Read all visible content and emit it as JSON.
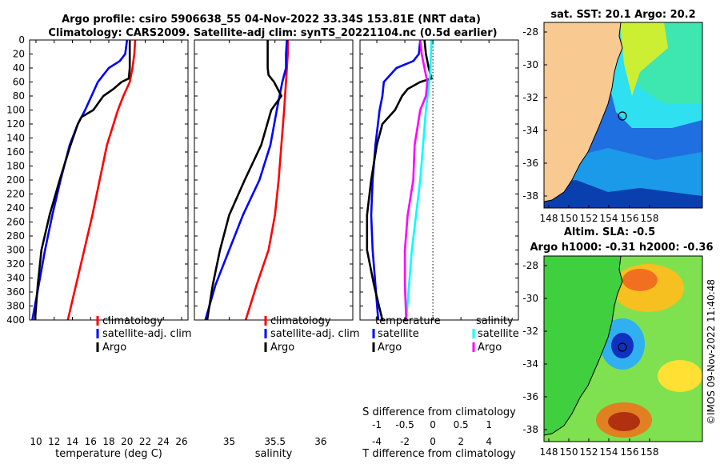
{
  "title": {
    "line1": "Argo profile: csiro 5906638_55 04-Nov-2022 33.34S 153.81E (NRT data)",
    "line2": "Climatology: CARS2009. Satellite-adj clim: synTS_20221104.nc (0.5d earlier)"
  },
  "colors": {
    "red": "#ff0000",
    "blue": "#0000ff",
    "black": "#000000",
    "cyan": "#00ffff",
    "magenta": "#ff00ff",
    "land": "#f9c992"
  },
  "chart_data": [
    {
      "id": "temperature",
      "type": "line",
      "xlabel": "temperature (deg C)",
      "ylim": [
        0,
        400
      ],
      "xlim": [
        9.3,
        26.7
      ],
      "xticks": [
        "10",
        "12",
        "14",
        "16",
        "18",
        "20",
        "22",
        "24",
        "26"
      ],
      "xtick_values": [
        10,
        12,
        14,
        16,
        18,
        20,
        22,
        24,
        26
      ],
      "yticks": [
        "0",
        "20",
        "40",
        "60",
        "80",
        "100",
        "120",
        "140",
        "160",
        "180",
        "200",
        "220",
        "240",
        "260",
        "280",
        "300",
        "320",
        "340",
        "360",
        "380",
        "400"
      ],
      "legend": [
        "climatology",
        "satellite-adj. clim",
        "Argo"
      ],
      "series": [
        {
          "name": "climatology",
          "color": "red",
          "depth": [
            0,
            20,
            40,
            60,
            80,
            100,
            150,
            200,
            250,
            300,
            350,
            400
          ],
          "values": [
            20.9,
            20.8,
            20.6,
            20.3,
            19.6,
            19.0,
            17.8,
            17.0,
            16.2,
            15.3,
            14.4,
            13.5
          ]
        },
        {
          "name": "satellite-adj. clim",
          "color": "blue",
          "depth": [
            0,
            20,
            30,
            40,
            60,
            80,
            100,
            120,
            150,
            200,
            250,
            300,
            350,
            400
          ],
          "values": [
            20.0,
            19.8,
            19.2,
            18.0,
            16.8,
            16.1,
            15.4,
            14.6,
            13.7,
            12.7,
            11.8,
            11.0,
            10.3,
            9.6
          ]
        },
        {
          "name": "Argo",
          "color": "black",
          "depth": [
            0,
            20,
            40,
            55,
            60,
            70,
            80,
            100,
            110,
            120,
            150,
            200,
            250,
            300,
            350,
            400
          ],
          "values": [
            20.3,
            20.3,
            20.3,
            20.2,
            19.4,
            18.5,
            17.4,
            16.3,
            15.0,
            14.6,
            13.8,
            12.6,
            11.5,
            10.6,
            10.2,
            9.9
          ]
        }
      ]
    },
    {
      "id": "salinity",
      "type": "line",
      "xlabel": "salinity",
      "ylim": [
        0,
        400
      ],
      "xlim": [
        34.62,
        36.35
      ],
      "xticks": [
        "35",
        "35.5",
        "36"
      ],
      "xtick_values": [
        35,
        35.5,
        36
      ],
      "legend": [
        "climatology",
        "satellite-adj. clim",
        "Argo"
      ],
      "series": [
        {
          "name": "climatology",
          "color": "red",
          "depth": [
            0,
            20,
            40,
            60,
            80,
            100,
            150,
            200,
            250,
            300,
            350,
            400
          ],
          "values": [
            35.64,
            35.64,
            35.63,
            35.62,
            35.61,
            35.6,
            35.57,
            35.54,
            35.5,
            35.43,
            35.3,
            35.18
          ]
        },
        {
          "name": "satellite-adj. clim",
          "color": "blue",
          "depth": [
            0,
            20,
            40,
            60,
            80,
            100,
            150,
            200,
            250,
            300,
            350,
            400
          ],
          "values": [
            35.63,
            35.62,
            35.62,
            35.58,
            35.55,
            35.52,
            35.45,
            35.33,
            35.15,
            35.0,
            34.85,
            34.74
          ]
        },
        {
          "name": "Argo",
          "color": "black",
          "depth": [
            0,
            20,
            40,
            50,
            60,
            80,
            100,
            150,
            200,
            250,
            300,
            350,
            400
          ],
          "values": [
            35.42,
            35.42,
            35.42,
            35.43,
            35.49,
            35.57,
            35.46,
            35.35,
            35.17,
            35.0,
            34.9,
            34.82,
            34.76
          ]
        }
      ]
    },
    {
      "id": "difference",
      "type": "line",
      "xlabel": "T difference from climatology",
      "xlabel_top": "S difference from climatology",
      "ylim": [
        0,
        400
      ],
      "xlim": [
        -5.2,
        6.1
      ],
      "xticks": [
        "-4",
        "-2",
        "0",
        "2",
        "4"
      ],
      "xtick_values": [
        -4,
        -2,
        0,
        2,
        4
      ],
      "xticks_top": [
        "-1",
        "-0.5",
        "0",
        "0.5",
        "1"
      ],
      "xtick_top_values": [
        -4,
        -2,
        0,
        2,
        4
      ],
      "legend_left": [
        "temperature",
        "satellite",
        "Argo"
      ],
      "legend_right": [
        "salinity",
        "satellite",
        "Argo"
      ],
      "series": [
        {
          "name": "T satellite",
          "color": "blue",
          "depth": [
            0,
            20,
            30,
            40,
            60,
            80,
            100,
            150,
            200,
            250,
            300,
            350,
            400
          ],
          "values": [
            -0.9,
            -1.0,
            -1.4,
            -2.6,
            -3.5,
            -3.6,
            -3.8,
            -4.1,
            -4.3,
            -4.4,
            -4.3,
            -4.1,
            -3.9
          ]
        },
        {
          "name": "T Argo",
          "color": "black",
          "depth": [
            0,
            20,
            40,
            55,
            60,
            70,
            80,
            100,
            120,
            150,
            200,
            250,
            300,
            350,
            400
          ],
          "values": [
            -0.6,
            -0.5,
            -0.3,
            -0.1,
            -0.9,
            -1.8,
            -2.2,
            -2.7,
            -3.6,
            -4.0,
            -4.4,
            -4.7,
            -4.7,
            -4.2,
            -3.6
          ]
        },
        {
          "name": "S satellite",
          "color": "cyan",
          "depth": [
            0,
            50,
            100,
            200,
            300,
            400
          ],
          "values": [
            -0.1,
            -0.2,
            -0.5,
            -0.9,
            -1.5,
            -1.9
          ]
        },
        {
          "name": "S Argo",
          "color": "magenta",
          "depth": [
            0,
            20,
            40,
            60,
            80,
            100,
            150,
            200,
            250,
            300,
            350,
            400
          ],
          "values": [
            -0.9,
            -0.8,
            -0.6,
            -0.4,
            -0.5,
            -0.9,
            -1.3,
            -1.4,
            -1.8,
            -2.0,
            -2.0,
            -1.9
          ]
        }
      ]
    }
  ],
  "maps": {
    "sst": {
      "title": "sat. SST: 20.1 Argo: 20.2"
    },
    "sla": {
      "title_line1": "Altim. SLA: -0.5",
      "title_line2": "Argo h1000: -0.31 h2000: -0.36"
    },
    "lon_ticks": [
      "148",
      "150",
      "152",
      "154",
      "156",
      "158"
    ],
    "lat_ticks": [
      "-28",
      "-30",
      "-32",
      "-34",
      "-36",
      "-38"
    ]
  },
  "credit": "©IMOS 09-Nov-2022 11:40:48"
}
